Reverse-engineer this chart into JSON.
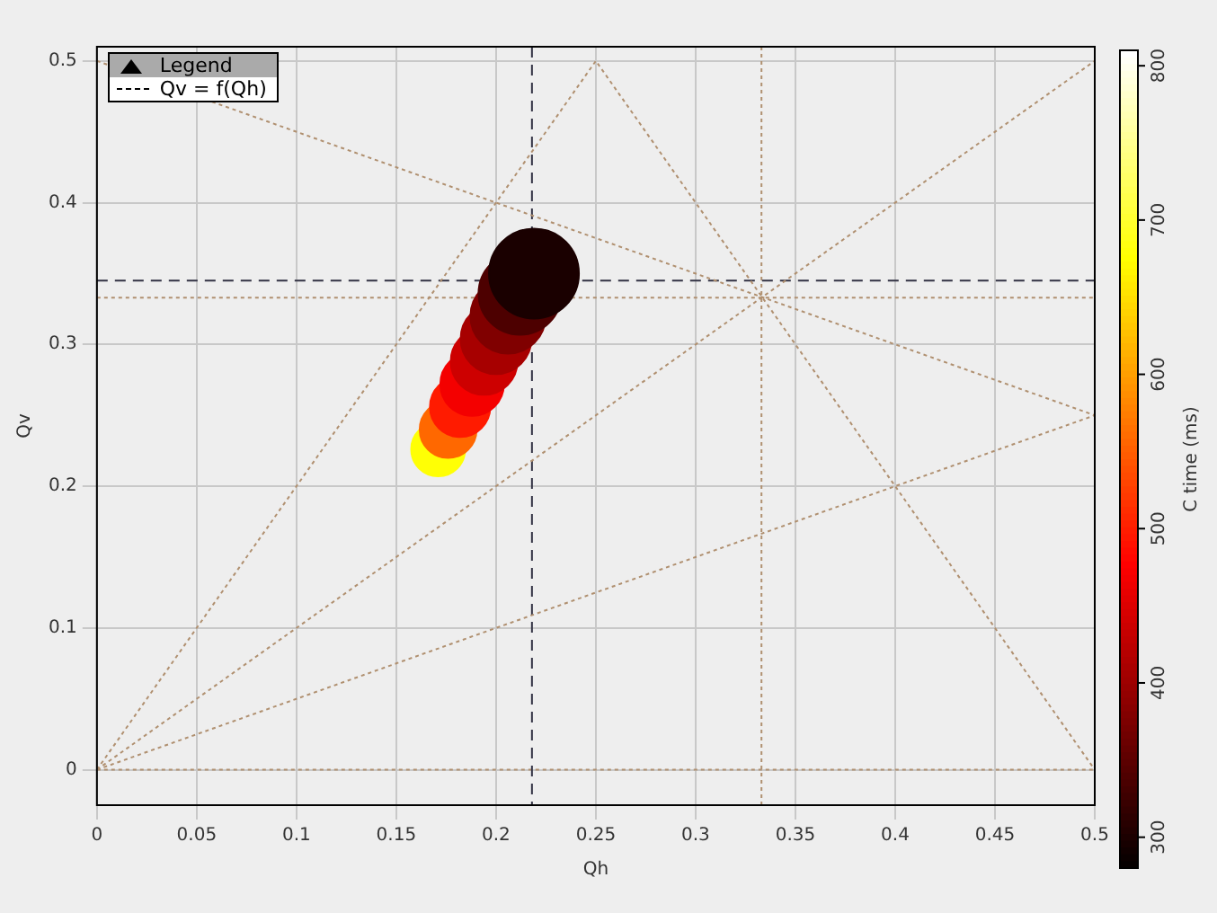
{
  "chart_data": {
    "type": "bubble",
    "xlabel": "Qh",
    "ylabel": "Qv",
    "clabel": "C time (ms)",
    "legend_title": "Legend",
    "legend": "top left",
    "grid": true,
    "xlim": [
      0,
      0.5
    ],
    "xticks": [
      0,
      0.05,
      0.1,
      0.15,
      0.2,
      0.25,
      0.3,
      0.35,
      0.4,
      0.45,
      0.5
    ],
    "ylim": [
      -0.025,
      0.51
    ],
    "yticks": [
      0,
      0.1,
      0.2,
      0.3,
      0.4,
      0.5
    ],
    "clim": [
      280,
      810
    ],
    "cticks": [
      300,
      400,
      500,
      600,
      700,
      800
    ],
    "series": [
      {
        "type": "bubble",
        "name": "Qv = f(Qh)",
        "x": [
          0.171,
          0.176,
          0.182,
          0.188,
          0.194,
          0.2,
          0.206,
          0.212,
          0.219
        ],
        "values": [
          0.226,
          0.24,
          0.256,
          0.272,
          0.288,
          0.304,
          0.32,
          0.336,
          0.35
        ],
        "colors": [
          "#ffff05",
          "#ff6800",
          "#ff1b00",
          "#f40000",
          "#cd0000",
          "#a70000",
          "#800000",
          "#4d0000",
          "#1a0000"
        ],
        "sizes": [
          0.36,
          0.4,
          0.45,
          0.5,
          0.55,
          0.62,
          0.7,
          0.85,
          1
        ],
        "cvalues": [
          680,
          560,
          500,
          470,
          440,
          410,
          380,
          340,
          300
        ]
      },
      {
        "type": "line",
        "color": "#b09070",
        "line_style": "dotted",
        "marker": "none",
        "x": [
          0,
          0.25,
          0.5
        ],
        "values": [
          0,
          0.5,
          0
        ]
      },
      {
        "type": "line",
        "color": "#b09070",
        "line_style": "dotted",
        "marker": "none",
        "x": [
          0,
          0.5
        ],
        "values": [
          0,
          0.5
        ]
      },
      {
        "type": "line",
        "color": "#b09070",
        "line_style": "dotted",
        "marker": "none",
        "x": [
          0,
          0.5
        ],
        "values": [
          0,
          0.25
        ]
      },
      {
        "type": "line",
        "color": "#b09070",
        "line_style": "dotted",
        "marker": "none",
        "x": [
          0,
          0.5
        ],
        "values": [
          0.5,
          0.25
        ]
      }
    ],
    "ref_lines": [
      {
        "axis": "x",
        "value": 0.333,
        "color": "#b09070",
        "line_style": "dotted"
      },
      {
        "axis": "y",
        "value": 0.333,
        "color": "#b09070",
        "line_style": "dotted"
      },
      {
        "axis": "y",
        "value": 0,
        "color": "#b09070",
        "line_style": "dotted"
      },
      {
        "axis": "x",
        "value": 0.218,
        "color": "#333344",
        "line_style": "dashed"
      },
      {
        "axis": "y",
        "value": 0.345,
        "color": "#333344",
        "line_style": "dashed"
      }
    ]
  }
}
